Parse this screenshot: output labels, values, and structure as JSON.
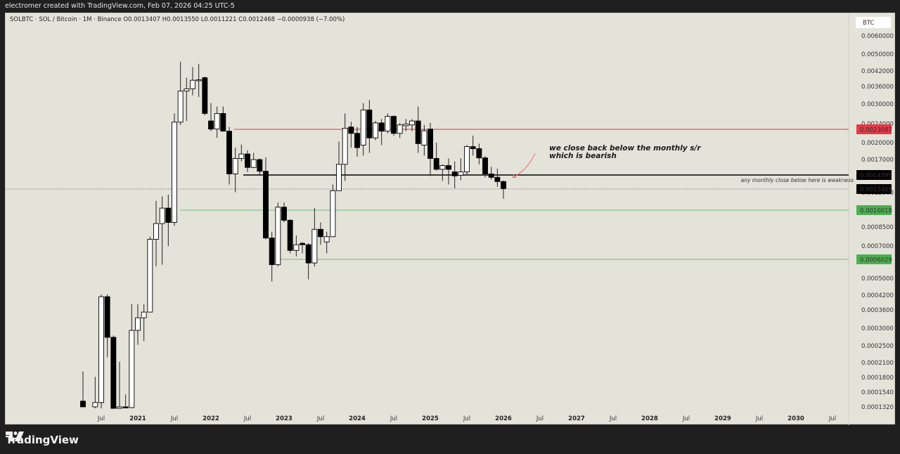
{
  "header": {
    "credit": "electromer created with TradingView.com, Feb 07, 2026 04:25 UTC-5"
  },
  "legend": {
    "text": "SOLBTC · SOL / Bitcoin · 1M · Binance  O0.0013407  H0.0013550  L0.0011221  C0.0012468  −0.0000938 (−7.00%)"
  },
  "footer": {
    "brand": "TradingView",
    "logo_icon": "tradingview-logo-icon"
  },
  "colors": {
    "background": "#e4e3da",
    "bull_fill": "#ffffff",
    "bear_fill": "#000000",
    "resistance_red": "#e53946",
    "support_green": "#4caf50",
    "sr_black": "#000000"
  },
  "chart_data": {
    "type": "candlestick",
    "title": "SOLBTC · SOL / Bitcoin · 1M · Binance",
    "scale": "log",
    "currency_label": "BTC",
    "ohlc_last": {
      "open": 0.0013407,
      "high": 0.001355,
      "low": 0.0011221,
      "close": 0.0012468,
      "change": -9.38e-05,
      "change_pct": "-7.00%"
    },
    "y_ticks": [
      "0.0060000",
      "0.0050000",
      "0.0042000",
      "0.0036000",
      "0.0030000",
      "0.0024000",
      "0.0020000",
      "0.0017000",
      "0.0012000",
      "0.0008500",
      "0.0007000",
      "0.0005000",
      "0.0004200",
      "0.0003600",
      "0.0003000",
      "0.0002500",
      "0.0002100",
      "0.0001800",
      "0.0001540",
      "0.0001320"
    ],
    "x_ticks": [
      "Jul",
      "2021",
      "Jul",
      "2022",
      "Jul",
      "2023",
      "Jul",
      "2024",
      "Jul",
      "2025",
      "Jul",
      "2026",
      "Jul",
      "2027",
      "Jul",
      "2028",
      "Jul",
      "2029",
      "Jul",
      "2030",
      "Jul"
    ],
    "price_labels": [
      {
        "value": "0.0023087",
        "color": "#e53946",
        "line": "red horizontal resistance"
      },
      {
        "value": "0.0014395",
        "color": "#000000",
        "line": "black monthly s/r"
      },
      {
        "value": "0.0012468",
        "color": "#000000",
        "line": "current price (dotted)"
      },
      {
        "value": "0.0010018",
        "color": "#4caf50",
        "line": "green support"
      },
      {
        "value": "0.0006029",
        "color": "#4caf50",
        "line": "green support"
      }
    ],
    "annotations": [
      "we close back below the monthly s/r",
      "which is bearish",
      "any monthly close below here is weakness"
    ],
    "candles": [
      {
        "m": "2020-04",
        "o": 0.00014,
        "h": 0.00019,
        "l": 0.000132,
        "c": 0.000132
      },
      {
        "m": "2020-06",
        "o": 0.000132,
        "h": 0.00018,
        "l": 0.00013,
        "c": 0.000138
      },
      {
        "m": "2020-07",
        "o": 0.000138,
        "h": 0.00042,
        "l": 0.00013,
        "c": 0.00041
      },
      {
        "m": "2020-08",
        "o": 0.00041,
        "h": 0.00042,
        "l": 0.00022,
        "c": 0.00027
      },
      {
        "m": "2020-09",
        "o": 0.00027,
        "h": 0.000275,
        "l": 0.00013,
        "c": 0.00013
      },
      {
        "m": "2020-10",
        "o": 0.00013,
        "h": 0.00021,
        "l": 0.00013,
        "c": 0.000132
      },
      {
        "m": "2020-11",
        "o": 0.000132,
        "h": 0.00015,
        "l": 0.00013,
        "c": 0.000131
      },
      {
        "m": "2020-12",
        "o": 0.000131,
        "h": 0.00038,
        "l": 0.00013,
        "c": 0.00029
      },
      {
        "m": "2021-01",
        "o": 0.00029,
        "h": 0.00038,
        "l": 0.00025,
        "c": 0.00033
      },
      {
        "m": "2021-02",
        "o": 0.00033,
        "h": 0.00038,
        "l": 0.00026,
        "c": 0.00035
      },
      {
        "m": "2021-03",
        "o": 0.00035,
        "h": 0.00076,
        "l": 0.00035,
        "c": 0.00074
      },
      {
        "m": "2021-04",
        "o": 0.00074,
        "h": 0.0011,
        "l": 0.00056,
        "c": 0.00087
      },
      {
        "m": "2021-05",
        "o": 0.00087,
        "h": 0.00115,
        "l": 0.00057,
        "c": 0.00102
      },
      {
        "m": "2021-06",
        "o": 0.00102,
        "h": 0.00117,
        "l": 0.00069,
        "c": 0.00088
      },
      {
        "m": "2021-07",
        "o": 0.00088,
        "h": 0.0027,
        "l": 0.00085,
        "c": 0.00247
      },
      {
        "m": "2021-08",
        "o": 0.00247,
        "h": 0.0046,
        "l": 0.0024,
        "c": 0.0034
      },
      {
        "m": "2021-09",
        "o": 0.0034,
        "h": 0.0039,
        "l": 0.0025,
        "c": 0.00348
      },
      {
        "m": "2021-10",
        "o": 0.00348,
        "h": 0.00435,
        "l": 0.00325,
        "c": 0.0038
      },
      {
        "m": "2021-11",
        "o": 0.0038,
        "h": 0.0045,
        "l": 0.0032,
        "c": 0.00382
      },
      {
        "m": "2021-12",
        "o": 0.0039,
        "h": 0.00395,
        "l": 0.00265,
        "c": 0.0027
      },
      {
        "m": "2022-01",
        "o": 0.0025,
        "h": 0.003,
        "l": 0.00225,
        "c": 0.0023
      },
      {
        "m": "2022-02",
        "o": 0.0023,
        "h": 0.0029,
        "l": 0.0021,
        "c": 0.0027
      },
      {
        "m": "2022-03",
        "o": 0.0027,
        "h": 0.0029,
        "l": 0.00225,
        "c": 0.00225
      },
      {
        "m": "2022-04",
        "o": 0.00225,
        "h": 0.00235,
        "l": 0.0013,
        "c": 0.00145
      },
      {
        "m": "2022-05",
        "o": 0.00145,
        "h": 0.0019,
        "l": 0.0012,
        "c": 0.0017
      },
      {
        "m": "2022-06",
        "o": 0.0017,
        "h": 0.00196,
        "l": 0.00165,
        "c": 0.00178
      },
      {
        "m": "2022-07",
        "o": 0.00178,
        "h": 0.00185,
        "l": 0.00148,
        "c": 0.00155
      },
      {
        "m": "2022-08",
        "o": 0.00155,
        "h": 0.0018,
        "l": 0.00154,
        "c": 0.00168
      },
      {
        "m": "2022-09",
        "o": 0.00168,
        "h": 0.0017,
        "l": 0.00144,
        "c": 0.00149
      },
      {
        "m": "2022-10",
        "o": 0.00149,
        "h": 0.00172,
        "l": 0.00074,
        "c": 0.00075
      },
      {
        "m": "2022-11",
        "o": 0.00075,
        "h": 0.0008,
        "l": 0.00048,
        "c": 0.00057
      },
      {
        "m": "2022-12",
        "o": 0.00057,
        "h": 0.00108,
        "l": 0.00056,
        "c": 0.00103
      },
      {
        "m": "2023-01",
        "o": 0.00103,
        "h": 0.00108,
        "l": 0.00088,
        "c": 0.0009
      },
      {
        "m": "2023-02",
        "o": 0.0009,
        "h": 0.00091,
        "l": 0.00064,
        "c": 0.00066
      },
      {
        "m": "2023-03",
        "o": 0.00066,
        "h": 0.00077,
        "l": 0.00062,
        "c": 0.0007
      },
      {
        "m": "2023-04",
        "o": 0.00071,
        "h": 0.00072,
        "l": 0.00064,
        "c": 0.0007
      },
      {
        "m": "2023-05",
        "o": 0.0007,
        "h": 0.00071,
        "l": 0.00049,
        "c": 0.00058
      },
      {
        "m": "2023-06",
        "o": 0.00058,
        "h": 0.00102,
        "l": 0.00056,
        "c": 0.00082
      },
      {
        "m": "2023-07",
        "o": 0.00082,
        "h": 0.00088,
        "l": 0.0007,
        "c": 0.00076
      },
      {
        "m": "2023-08",
        "o": 0.00072,
        "h": 0.0008,
        "l": 0.00064,
        "c": 0.00076
      },
      {
        "m": "2023-09",
        "o": 0.00076,
        "h": 0.0013,
        "l": 0.00076,
        "c": 0.00122
      },
      {
        "m": "2023-10",
        "o": 0.00122,
        "h": 0.00202,
        "l": 0.00122,
        "c": 0.0016
      },
      {
        "m": "2023-11",
        "o": 0.0016,
        "h": 0.0027,
        "l": 0.00135,
        "c": 0.00232
      },
      {
        "m": "2023-12",
        "o": 0.00235,
        "h": 0.00248,
        "l": 0.0019,
        "c": 0.0022
      },
      {
        "m": "2024-01",
        "o": 0.0022,
        "h": 0.00235,
        "l": 0.00173,
        "c": 0.0019
      },
      {
        "m": "2024-02",
        "o": 0.00195,
        "h": 0.003,
        "l": 0.00175,
        "c": 0.0028
      },
      {
        "m": "2024-03",
        "o": 0.0028,
        "h": 0.0031,
        "l": 0.0018,
        "c": 0.0021
      },
      {
        "m": "2024-04",
        "o": 0.0021,
        "h": 0.0025,
        "l": 0.00205,
        "c": 0.00245
      },
      {
        "m": "2024-05",
        "o": 0.00245,
        "h": 0.00255,
        "l": 0.00195,
        "c": 0.00225
      },
      {
        "m": "2024-06",
        "o": 0.00225,
        "h": 0.0027,
        "l": 0.0022,
        "c": 0.00262
      },
      {
        "m": "2024-07",
        "o": 0.00262,
        "h": 0.00265,
        "l": 0.00215,
        "c": 0.0022
      },
      {
        "m": "2024-08",
        "o": 0.0022,
        "h": 0.00245,
        "l": 0.0021,
        "c": 0.0024
      },
      {
        "m": "2024-09",
        "o": 0.00238,
        "h": 0.00255,
        "l": 0.00225,
        "c": 0.00242
      },
      {
        "m": "2024-10",
        "o": 0.0024,
        "h": 0.00255,
        "l": 0.00225,
        "c": 0.0025
      },
      {
        "m": "2024-11",
        "o": 0.0025,
        "h": 0.0029,
        "l": 0.0018,
        "c": 0.00198
      },
      {
        "m": "2024-12",
        "o": 0.00195,
        "h": 0.0024,
        "l": 0.00175,
        "c": 0.00226
      },
      {
        "m": "2025-01",
        "o": 0.0023,
        "h": 0.00245,
        "l": 0.00142,
        "c": 0.0017
      },
      {
        "m": "2025-02",
        "o": 0.0017,
        "h": 0.002,
        "l": 0.0015,
        "c": 0.00152
      },
      {
        "m": "2025-03",
        "o": 0.00152,
        "h": 0.0016,
        "l": 0.00135,
        "c": 0.00158
      },
      {
        "m": "2025-04",
        "o": 0.00158,
        "h": 0.0017,
        "l": 0.0013,
        "c": 0.00152
      },
      {
        "m": "2025-05",
        "o": 0.00148,
        "h": 0.00165,
        "l": 0.00125,
        "c": 0.00142
      },
      {
        "m": "2025-06",
        "o": 0.00143,
        "h": 0.0017,
        "l": 0.00136,
        "c": 0.00148
      },
      {
        "m": "2025-07",
        "o": 0.00148,
        "h": 0.00195,
        "l": 0.00143,
        "c": 0.00192
      },
      {
        "m": "2025-08",
        "o": 0.00192,
        "h": 0.00215,
        "l": 0.00175,
        "c": 0.00188
      },
      {
        "m": "2025-09",
        "o": 0.00188,
        "h": 0.00198,
        "l": 0.0016,
        "c": 0.00171
      },
      {
        "m": "2025-10",
        "o": 0.00171,
        "h": 0.00174,
        "l": 0.0014,
        "c": 0.00145
      },
      {
        "m": "2025-11",
        "o": 0.00145,
        "h": 0.00156,
        "l": 0.00137,
        "c": 0.0014
      },
      {
        "m": "2025-12",
        "o": 0.0014,
        "h": 0.00153,
        "l": 0.00127,
        "c": 0.00134
      },
      {
        "m": "2026-01",
        "o": 0.0013407,
        "h": 0.001355,
        "l": 0.0011221,
        "c": 0.0012468
      }
    ]
  }
}
